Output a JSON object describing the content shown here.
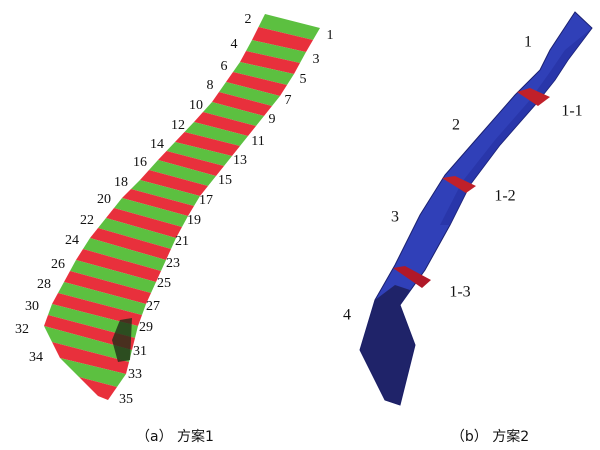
{
  "panel_a": {
    "labels": [
      "1",
      "2",
      "3",
      "4",
      "5",
      "6",
      "7",
      "8",
      "9",
      "10",
      "11",
      "12",
      "13",
      "14",
      "15",
      "16",
      "17",
      "18",
      "19",
      "20",
      "21",
      "22",
      "23",
      "24",
      "25",
      "26",
      "27",
      "28",
      "29",
      "30",
      "31",
      "32",
      "33",
      "34",
      "35"
    ],
    "caption": "（a） 方案1"
  },
  "panel_b": {
    "labels": [
      "1",
      "2",
      "3",
      "4"
    ],
    "sections": [
      "1-1",
      "1-2",
      "1-3"
    ],
    "caption": "（b） 方案2"
  }
}
